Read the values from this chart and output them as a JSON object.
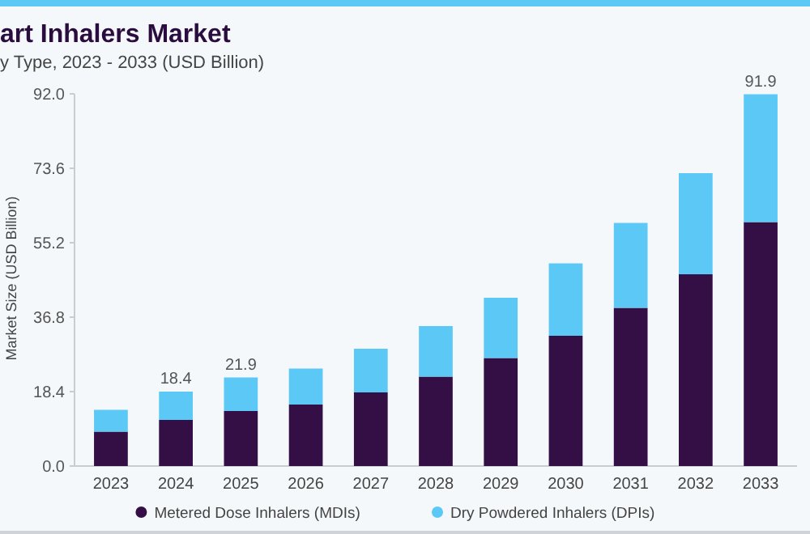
{
  "chart_data": {
    "type": "bar",
    "title": "art Inhalers Market",
    "subtitle": "y Type, 2023 - 2033 (USD Billion)",
    "ylabel": "Market Size (USD Billion)",
    "categories": [
      "2023",
      "2024",
      "2025",
      "2026",
      "2027",
      "2028",
      "2029",
      "2030",
      "2031",
      "2032",
      "2033"
    ],
    "stacked": true,
    "series": [
      {
        "name": "Metered Dose Inhalers (MDIs)",
        "color": "#330f45",
        "values": [
          8.5,
          11.4,
          13.6,
          15.2,
          18.2,
          22.1,
          26.7,
          32.2,
          39.1,
          47.4,
          60.3
        ]
      },
      {
        "name": "Dry Powdered Inhalers (DPIs)",
        "color": "#5bc8f5",
        "values": [
          5.4,
          7.0,
          8.3,
          8.9,
          10.8,
          12.5,
          14.9,
          17.9,
          21.0,
          25.0,
          31.6
        ]
      }
    ],
    "totals": [
      null,
      "18.4",
      "21.9",
      null,
      null,
      null,
      null,
      null,
      null,
      null,
      "91.9"
    ],
    "ylim": [
      0,
      92
    ],
    "yticks": [
      {
        "value": 0,
        "label": "0.0"
      },
      {
        "value": 18.4,
        "label": "18.4"
      },
      {
        "value": 36.8,
        "label": "36.8"
      },
      {
        "value": 55.2,
        "label": "55.2"
      },
      {
        "value": 73.6,
        "label": "73.6"
      },
      {
        "value": 92,
        "label": "92.0"
      }
    ],
    "grid": false,
    "legend": "bottom"
  }
}
